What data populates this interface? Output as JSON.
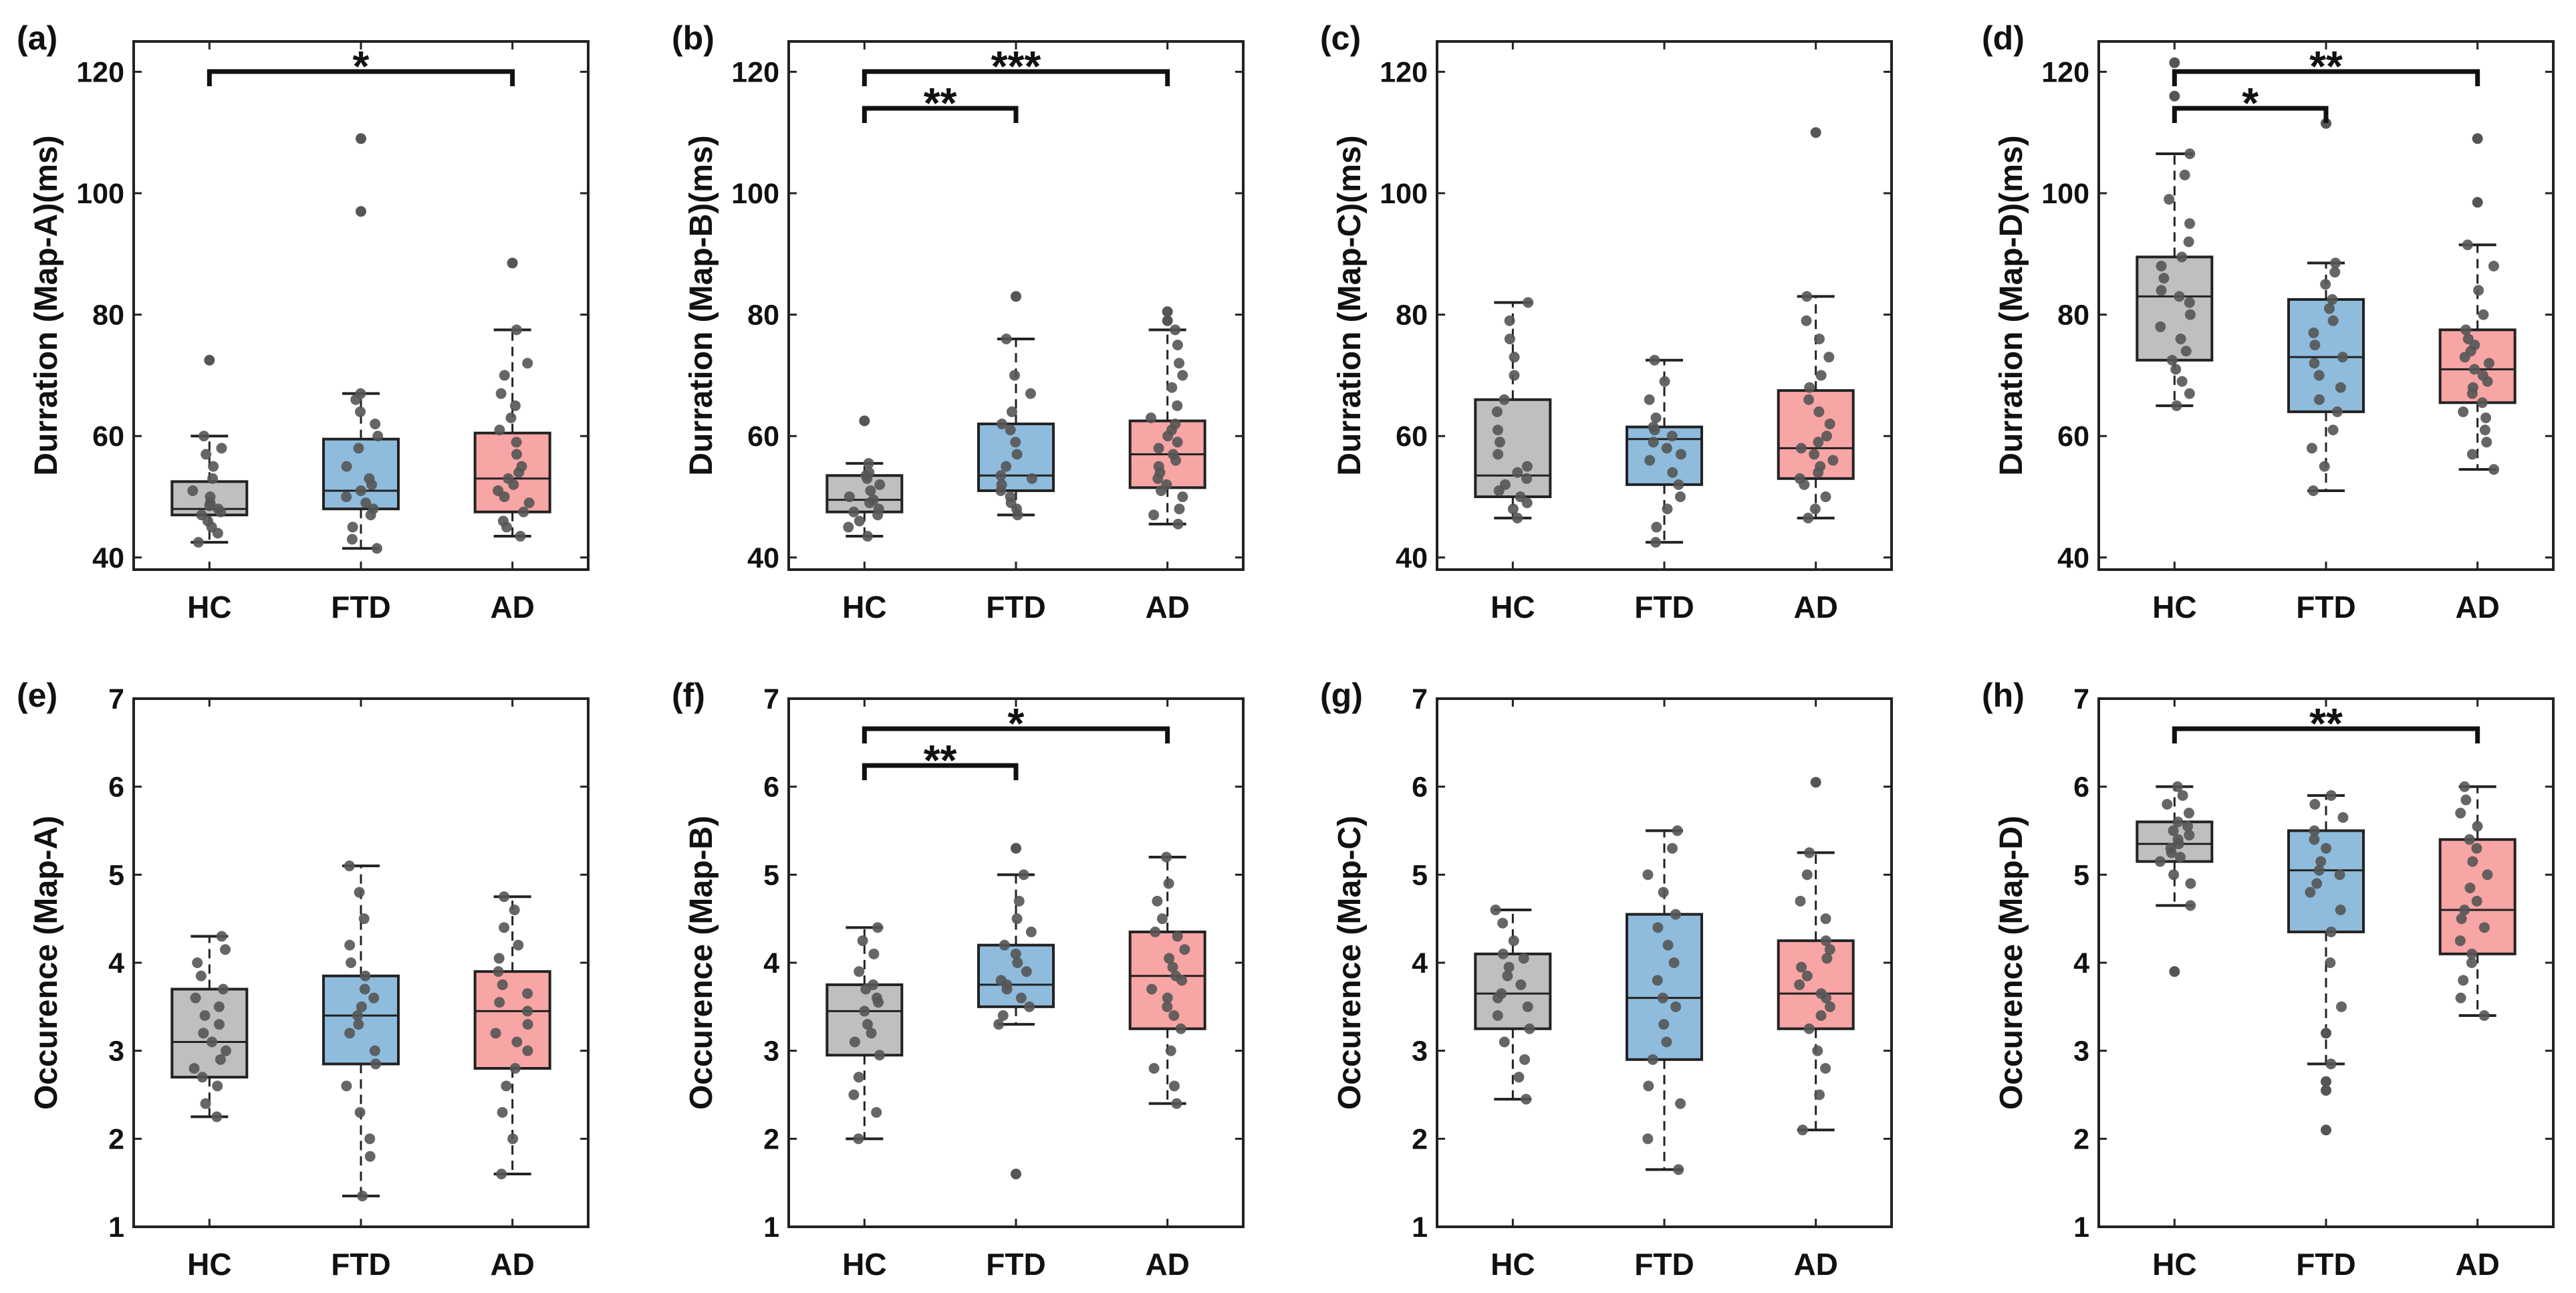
{
  "figure": {
    "categories": [
      "HC",
      "FTD",
      "AD"
    ],
    "group_colors": {
      "HC": "#bfbfbf",
      "FTD": "#8fbcdd",
      "AD": "#f8a5a5"
    },
    "point_color": "#555555",
    "panels_per_row": 4
  },
  "chart_data": [
    {
      "panel": "(a)",
      "type": "box",
      "ylabel": "Durration (Map-A)(ms)",
      "ylim": [
        38,
        125
      ],
      "yticks": [
        40,
        60,
        80,
        100,
        120
      ],
      "categories": [
        "HC",
        "FTD",
        "AD"
      ],
      "boxes": [
        {
          "group": "HC",
          "whisker_low": 42.5,
          "q1": 47,
          "median": 48,
          "q3": 52.5,
          "whisker_high": 60,
          "outliers": [
            72.5
          ]
        },
        {
          "group": "FTD",
          "whisker_low": 41.5,
          "q1": 48,
          "median": 51,
          "q3": 59.5,
          "whisker_high": 67,
          "outliers": [
            97,
            109
          ]
        },
        {
          "group": "AD",
          "whisker_low": 43.5,
          "q1": 47.5,
          "median": 53,
          "q3": 60.5,
          "whisker_high": 77.5,
          "outliers": [
            88.5
          ]
        }
      ],
      "points": [
        [
          42.5,
          44,
          45,
          46,
          47,
          47.5,
          48,
          48.5,
          49,
          50,
          51,
          53,
          55,
          57,
          58,
          60
        ],
        [
          41.5,
          43,
          45,
          47,
          48,
          49,
          50,
          51,
          52,
          53,
          55,
          58,
          60,
          62,
          64,
          66,
          67
        ],
        [
          43.5,
          45,
          46,
          47.5,
          49,
          50,
          51,
          52,
          53,
          54,
          55,
          57,
          59,
          61,
          63,
          65,
          67,
          70,
          72,
          77.5
        ]
      ],
      "significance": [
        {
          "from": "HC",
          "to": "AD",
          "label": "*",
          "level": 1
        }
      ]
    },
    {
      "panel": "(b)",
      "type": "box",
      "ylabel": "Durration (Map-B)(ms)",
      "ylim": [
        38,
        125
      ],
      "yticks": [
        40,
        60,
        80,
        100,
        120
      ],
      "categories": [
        "HC",
        "FTD",
        "AD"
      ],
      "boxes": [
        {
          "group": "HC",
          "whisker_low": 43.5,
          "q1": 47.5,
          "median": 49.5,
          "q3": 53.5,
          "whisker_high": 55.5,
          "outliers": [
            62.5
          ]
        },
        {
          "group": "FTD",
          "whisker_low": 47,
          "q1": 51,
          "median": 53.5,
          "q3": 62,
          "whisker_high": 76,
          "outliers": [
            83
          ]
        },
        {
          "group": "AD",
          "whisker_low": 45.5,
          "q1": 51.5,
          "median": 57,
          "q3": 62.5,
          "whisker_high": 77.5,
          "outliers": [
            79,
            80.5
          ]
        }
      ],
      "points": [
        [
          43.5,
          45,
          46,
          47,
          47.5,
          48,
          49,
          49.5,
          50,
          51,
          52,
          53,
          53.5,
          54,
          55.5
        ],
        [
          47,
          48,
          49,
          50,
          51,
          52,
          53,
          53.5,
          55,
          57,
          59,
          61,
          62,
          64,
          67,
          70,
          76
        ],
        [
          45.5,
          47,
          48,
          50,
          51,
          52,
          53,
          54,
          55,
          56,
          57,
          58,
          59,
          60,
          61,
          62,
          63,
          65,
          68,
          70,
          72,
          75,
          77.5
        ]
      ],
      "significance": [
        {
          "from": "HC",
          "to": "FTD",
          "label": "**",
          "level": 0
        },
        {
          "from": "HC",
          "to": "AD",
          "label": "***",
          "level": 1
        }
      ]
    },
    {
      "panel": "(c)",
      "type": "box",
      "ylabel": "Durration (Map-C)(ms)",
      "ylim": [
        38,
        125
      ],
      "yticks": [
        40,
        60,
        80,
        100,
        120
      ],
      "categories": [
        "HC",
        "FTD",
        "AD"
      ],
      "boxes": [
        {
          "group": "HC",
          "whisker_low": 46.5,
          "q1": 50,
          "median": 53.5,
          "q3": 66,
          "whisker_high": 82,
          "outliers": []
        },
        {
          "group": "FTD",
          "whisker_low": 42.5,
          "q1": 52,
          "median": 59.5,
          "q3": 61.5,
          "whisker_high": 72.5,
          "outliers": []
        },
        {
          "group": "AD",
          "whisker_low": 46.5,
          "q1": 53,
          "median": 58,
          "q3": 67.5,
          "whisker_high": 83,
          "outliers": [
            110
          ]
        }
      ],
      "points": [
        [
          46.5,
          48,
          49,
          50,
          51,
          52,
          53,
          54,
          55,
          57,
          59,
          61,
          64,
          66,
          70,
          73,
          76,
          79,
          82
        ],
        [
          42.5,
          45,
          48,
          50,
          52,
          54,
          56,
          57,
          58,
          59,
          60,
          61,
          61.5,
          63,
          66,
          69,
          72.5
        ],
        [
          46.5,
          48,
          50,
          52,
          53,
          54,
          55,
          56,
          57,
          58,
          59,
          60,
          62,
          64,
          66,
          68,
          70,
          73,
          76,
          79,
          83
        ]
      ],
      "significance": []
    },
    {
      "panel": "(d)",
      "type": "box",
      "ylabel": "Durration (Map-D)(ms)",
      "ylim": [
        38,
        125
      ],
      "yticks": [
        40,
        60,
        80,
        100,
        120
      ],
      "categories": [
        "HC",
        "FTD",
        "AD"
      ],
      "boxes": [
        {
          "group": "HC",
          "whisker_low": 65,
          "q1": 72.5,
          "median": 83,
          "q3": 89.5,
          "whisker_high": 106.5,
          "outliers": [
            116,
            121.5
          ]
        },
        {
          "group": "FTD",
          "whisker_low": 51,
          "q1": 64,
          "median": 73,
          "q3": 82.5,
          "whisker_high": 88.5,
          "outliers": [
            111.5
          ]
        },
        {
          "group": "AD",
          "whisker_low": 54.5,
          "q1": 65.5,
          "median": 71,
          "q3": 77.5,
          "whisker_high": 91.5,
          "outliers": [
            98.5,
            109
          ]
        }
      ],
      "points": [
        [
          65,
          67,
          69,
          71,
          72.5,
          74,
          76,
          78,
          80,
          82,
          83,
          84,
          86,
          88,
          89.5,
          92,
          95,
          99,
          103,
          106.5
        ],
        [
          51,
          55,
          58,
          61,
          64,
          66,
          68,
          70,
          72,
          73,
          75,
          77,
          79,
          81,
          82.5,
          85,
          87,
          88.5
        ],
        [
          54.5,
          57,
          59,
          61,
          63,
          64,
          65.5,
          67,
          68,
          69,
          70,
          71,
          72,
          73,
          74,
          75,
          76,
          77.5,
          80,
          84,
          88,
          91.5
        ]
      ],
      "significance": [
        {
          "from": "HC",
          "to": "FTD",
          "label": "*",
          "level": 0
        },
        {
          "from": "HC",
          "to": "AD",
          "label": "**",
          "level": 1
        }
      ]
    },
    {
      "panel": "(e)",
      "type": "box",
      "ylabel": "Occurence (Map-A)",
      "ylim": [
        1,
        7
      ],
      "yticks": [
        1,
        2,
        3,
        4,
        5,
        6,
        7
      ],
      "categories": [
        "HC",
        "FTD",
        "AD"
      ],
      "boxes": [
        {
          "group": "HC",
          "whisker_low": 2.25,
          "q1": 2.7,
          "median": 3.1,
          "q3": 3.7,
          "whisker_high": 4.3,
          "outliers": []
        },
        {
          "group": "FTD",
          "whisker_low": 1.35,
          "q1": 2.85,
          "median": 3.4,
          "q3": 3.85,
          "whisker_high": 5.1,
          "outliers": []
        },
        {
          "group": "AD",
          "whisker_low": 1.6,
          "q1": 2.8,
          "median": 3.45,
          "q3": 3.9,
          "whisker_high": 4.75,
          "outliers": []
        }
      ],
      "points": [
        [
          2.25,
          2.4,
          2.6,
          2.7,
          2.8,
          2.9,
          3.0,
          3.1,
          3.2,
          3.3,
          3.4,
          3.5,
          3.6,
          3.7,
          3.85,
          4.0,
          4.15,
          4.3
        ],
        [
          1.35,
          1.8,
          2.0,
          2.3,
          2.6,
          2.85,
          3.0,
          3.2,
          3.3,
          3.4,
          3.5,
          3.6,
          3.7,
          3.85,
          4.0,
          4.2,
          4.5,
          4.8,
          5.1
        ],
        [
          1.6,
          2.0,
          2.3,
          2.6,
          2.8,
          3.0,
          3.1,
          3.2,
          3.3,
          3.45,
          3.55,
          3.65,
          3.75,
          3.9,
          4.05,
          4.2,
          4.4,
          4.6,
          4.75
        ]
      ],
      "significance": []
    },
    {
      "panel": "(f)",
      "type": "box",
      "ylabel": "Occurence (Map-B)",
      "ylim": [
        1,
        7
      ],
      "yticks": [
        1,
        2,
        3,
        4,
        5,
        6,
        7
      ],
      "categories": [
        "HC",
        "FTD",
        "AD"
      ],
      "boxes": [
        {
          "group": "HC",
          "whisker_low": 2.0,
          "q1": 2.95,
          "median": 3.45,
          "q3": 3.75,
          "whisker_high": 4.4,
          "outliers": []
        },
        {
          "group": "FTD",
          "whisker_low": 3.3,
          "q1": 3.5,
          "median": 3.75,
          "q3": 4.2,
          "whisker_high": 5.0,
          "outliers": [
            1.6,
            5.3
          ]
        },
        {
          "group": "AD",
          "whisker_low": 2.4,
          "q1": 3.25,
          "median": 3.85,
          "q3": 4.35,
          "whisker_high": 5.2,
          "outliers": []
        }
      ],
      "points": [
        [
          2.0,
          2.3,
          2.5,
          2.7,
          2.95,
          3.1,
          3.2,
          3.3,
          3.45,
          3.55,
          3.6,
          3.7,
          3.75,
          3.9,
          4.1,
          4.25,
          4.4
        ],
        [
          3.3,
          3.4,
          3.5,
          3.6,
          3.7,
          3.75,
          3.8,
          3.9,
          4.0,
          4.1,
          4.2,
          4.35,
          4.5,
          4.7,
          5.0
        ],
        [
          2.4,
          2.6,
          2.8,
          3.0,
          3.25,
          3.4,
          3.5,
          3.6,
          3.7,
          3.8,
          3.85,
          3.95,
          4.05,
          4.15,
          4.3,
          4.35,
          4.5,
          4.7,
          4.9,
          5.2
        ]
      ],
      "significance": [
        {
          "from": "HC",
          "to": "FTD",
          "label": "**",
          "level": 0
        },
        {
          "from": "HC",
          "to": "AD",
          "label": "*",
          "level": 1
        }
      ]
    },
    {
      "panel": "(g)",
      "type": "box",
      "ylabel": "Occurence (Map-C)",
      "ylim": [
        1,
        7
      ],
      "yticks": [
        1,
        2,
        3,
        4,
        5,
        6,
        7
      ],
      "categories": [
        "HC",
        "FTD",
        "AD"
      ],
      "boxes": [
        {
          "group": "HC",
          "whisker_low": 2.45,
          "q1": 3.25,
          "median": 3.65,
          "q3": 4.1,
          "whisker_high": 4.6,
          "outliers": []
        },
        {
          "group": "FTD",
          "whisker_low": 1.65,
          "q1": 2.9,
          "median": 3.6,
          "q3": 4.55,
          "whisker_high": 5.5,
          "outliers": []
        },
        {
          "group": "AD",
          "whisker_low": 2.1,
          "q1": 3.25,
          "median": 3.65,
          "q3": 4.25,
          "whisker_high": 5.25,
          "outliers": [
            6.05
          ]
        }
      ],
      "points": [
        [
          2.45,
          2.7,
          2.9,
          3.1,
          3.25,
          3.4,
          3.5,
          3.6,
          3.65,
          3.75,
          3.85,
          3.95,
          4.05,
          4.1,
          4.25,
          4.45,
          4.6
        ],
        [
          1.65,
          2.0,
          2.4,
          2.6,
          2.9,
          3.1,
          3.3,
          3.5,
          3.6,
          3.8,
          4.0,
          4.2,
          4.4,
          4.55,
          4.8,
          5.0,
          5.3,
          5.5
        ],
        [
          2.1,
          2.5,
          2.8,
          3.0,
          3.25,
          3.4,
          3.5,
          3.6,
          3.65,
          3.75,
          3.85,
          3.95,
          4.05,
          4.15,
          4.25,
          4.5,
          4.7,
          5.0,
          5.25
        ]
      ],
      "significance": []
    },
    {
      "panel": "(h)",
      "type": "box",
      "ylabel": "Occurence (Map-D)",
      "ylim": [
        1,
        7
      ],
      "yticks": [
        1,
        2,
        3,
        4,
        5,
        6,
        7
      ],
      "categories": [
        "HC",
        "FTD",
        "AD"
      ],
      "boxes": [
        {
          "group": "HC",
          "whisker_low": 4.65,
          "q1": 5.15,
          "median": 5.35,
          "q3": 5.6,
          "whisker_high": 6.0,
          "outliers": [
            3.9
          ]
        },
        {
          "group": "FTD",
          "whisker_low": 2.85,
          "q1": 4.35,
          "median": 5.05,
          "q3": 5.5,
          "whisker_high": 5.9,
          "outliers": [
            2.1,
            2.55,
            2.65,
            3.2
          ]
        },
        {
          "group": "AD",
          "whisker_low": 3.4,
          "q1": 4.1,
          "median": 4.6,
          "q3": 5.4,
          "whisker_high": 6.0,
          "outliers": []
        }
      ],
      "points": [
        [
          4.65,
          4.9,
          5.0,
          5.15,
          5.2,
          5.25,
          5.3,
          5.35,
          5.4,
          5.45,
          5.5,
          5.55,
          5.6,
          5.7,
          5.8,
          5.9,
          6.0
        ],
        [
          2.85,
          3.5,
          4.0,
          4.35,
          4.6,
          4.8,
          4.9,
          5.0,
          5.05,
          5.15,
          5.3,
          5.4,
          5.5,
          5.65,
          5.8,
          5.9
        ],
        [
          3.4,
          3.6,
          3.8,
          4.0,
          4.1,
          4.25,
          4.4,
          4.5,
          4.6,
          4.7,
          4.85,
          5.0,
          5.15,
          5.3,
          5.4,
          5.55,
          5.7,
          5.85,
          6.0
        ]
      ],
      "significance": [
        {
          "from": "HC",
          "to": "AD",
          "label": "**",
          "level": 1
        }
      ]
    }
  ]
}
